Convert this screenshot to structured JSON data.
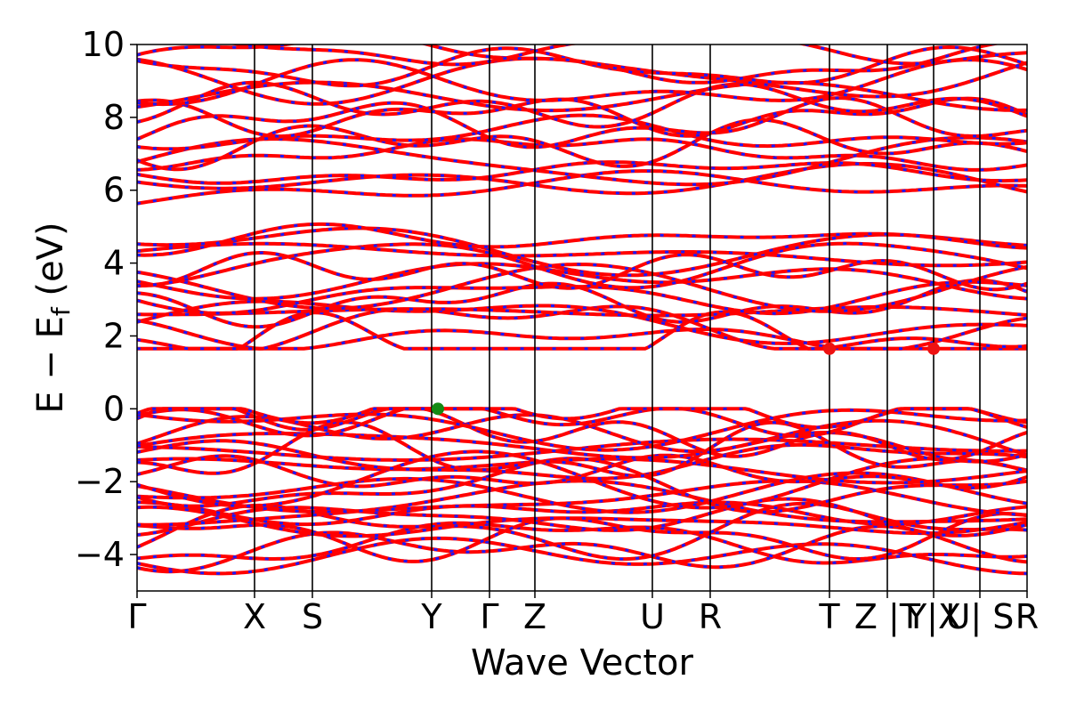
{
  "chart_data": {
    "type": "line",
    "title": "",
    "xlabel": "Wave Vector",
    "ylabel": "E − E_f (eV)",
    "ylabel_main": "E  −  E",
    "ylabel_sub": "f",
    "ylabel_tail": " (eV)",
    "ylim": [
      -5,
      10
    ],
    "yticks": [
      -4,
      -2,
      0,
      2,
      4,
      6,
      8,
      10
    ],
    "ytick_labels": [
      "−4",
      "−2",
      "0",
      "2",
      "4",
      "6",
      "8",
      "10"
    ],
    "kpath": [
      {
        "label": "Γ",
        "x": 0.0
      },
      {
        "label": "X",
        "x": 0.132
      },
      {
        "label": "S",
        "x": 0.197
      },
      {
        "label": "Y",
        "x": 0.331
      },
      {
        "label": "Γ",
        "x": 0.396
      },
      {
        "label": "Z",
        "x": 0.447
      },
      {
        "label": "U",
        "x": 0.579
      },
      {
        "label": "R",
        "x": 0.644
      },
      {
        "label": "T",
        "x": 0.778
      },
      {
        "label": "Z |T",
        "x": 0.843
      },
      {
        "label": "Y|X",
        "x": 0.895
      },
      {
        "label": "U| S",
        "x": 0.947
      },
      {
        "label": "R",
        "x": 1.0
      }
    ],
    "grid": false,
    "legend": false,
    "series_colors": {
      "line": "#ff0000",
      "dash": "#1a1aff"
    },
    "markers": [
      {
        "name": "vbm",
        "x": 0.338,
        "y": 0.0,
        "color": "#138a13"
      },
      {
        "name": "cbm-1",
        "x": 0.778,
        "y": 1.65,
        "color": "#ee1111"
      },
      {
        "name": "cbm-2",
        "x": 0.895,
        "y": 1.65,
        "color": "#ee1111"
      }
    ],
    "band_groups": [
      {
        "name": "valence",
        "ymin": -4.1,
        "ymax": 0.0,
        "count": 24
      },
      {
        "name": "conduction-low",
        "ymin": 1.65,
        "ymax": 4.8,
        "count": 14
      },
      {
        "name": "conduction-high",
        "ymin": 5.85,
        "ymax": 10.0,
        "count": 16
      }
    ]
  }
}
